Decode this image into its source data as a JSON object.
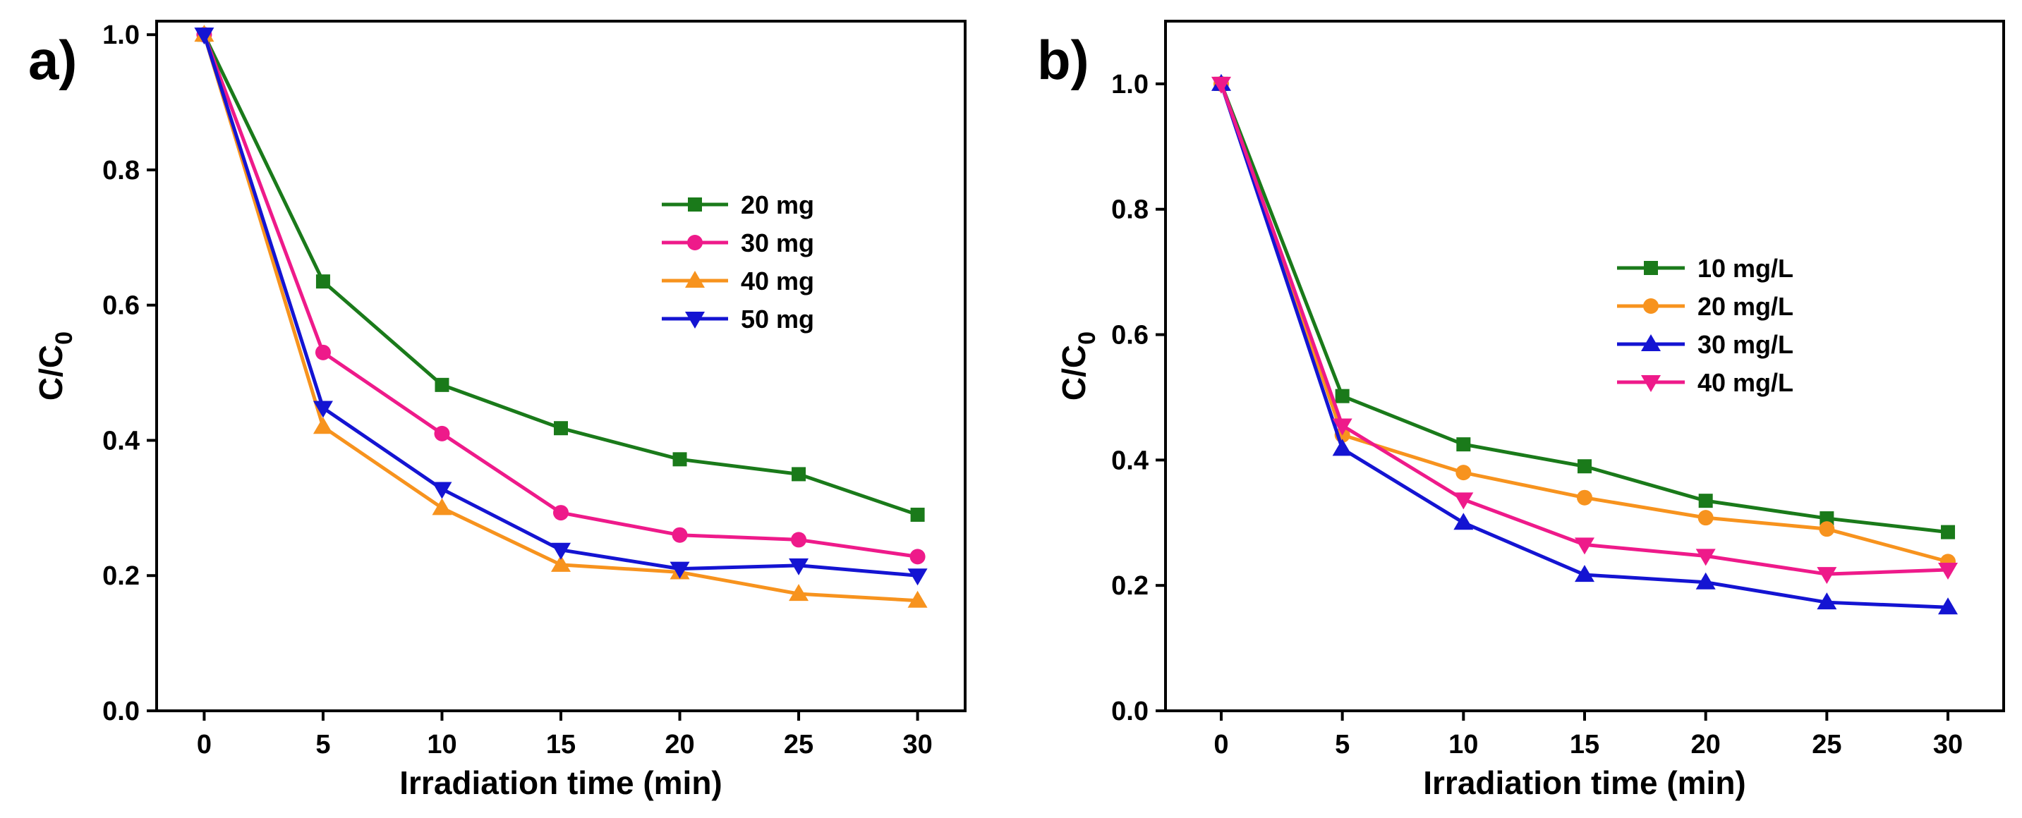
{
  "chart_data": [
    {
      "panel_label": "a)",
      "type": "line",
      "x": [
        0,
        5,
        10,
        15,
        20,
        25,
        30
      ],
      "xlabel": "Irradiation time (min)",
      "ylabel": "C/C",
      "ylabel_subscript": "0",
      "xlim": [
        -2,
        32
      ],
      "ylim": [
        0.0,
        1.02
      ],
      "xticks": [
        0,
        5,
        10,
        15,
        20,
        25,
        30
      ],
      "xtick_labels": [
        "0",
        "5",
        "10",
        "15",
        "20",
        "25",
        "30"
      ],
      "yticks": [
        0.0,
        0.2,
        0.4,
        0.6,
        0.8,
        1.0
      ],
      "ytick_labels": [
        "0.0",
        "0.2",
        "0.4",
        "0.6",
        "0.8",
        "1.0"
      ],
      "legend_position": "upper-right",
      "series": [
        {
          "name": "20 mg",
          "color": "#1a7a1a",
          "marker": "square",
          "values": [
            1.0,
            0.635,
            0.482,
            0.418,
            0.372,
            0.35,
            0.29
          ]
        },
        {
          "name": "30 mg",
          "color": "#ee1a8a",
          "marker": "circle",
          "values": [
            1.0,
            0.53,
            0.41,
            0.293,
            0.26,
            0.253,
            0.228
          ]
        },
        {
          "name": "40 mg",
          "color": "#f7931e",
          "marker": "triangle-up",
          "values": [
            1.0,
            0.42,
            0.3,
            0.216,
            0.205,
            0.173,
            0.163
          ]
        },
        {
          "name": "50 mg",
          "color": "#1414d2",
          "marker": "triangle-down",
          "values": [
            1.0,
            0.448,
            0.328,
            0.238,
            0.21,
            0.215,
            0.2
          ]
        }
      ]
    },
    {
      "panel_label": "b)",
      "type": "line",
      "x": [
        0,
        5,
        10,
        15,
        20,
        25,
        30
      ],
      "xlabel": "Irradiation time (min)",
      "ylabel": "C/C",
      "ylabel_subscript": "0",
      "xlim": [
        -2.3,
        32.3
      ],
      "ylim": [
        0.0,
        1.1
      ],
      "xticks": [
        0,
        5,
        10,
        15,
        20,
        25,
        30
      ],
      "xtick_labels": [
        "0",
        "5",
        "10",
        "15",
        "20",
        "25",
        "30"
      ],
      "yticks": [
        0.0,
        0.2,
        0.4,
        0.6,
        0.8,
        1.0
      ],
      "ytick_labels": [
        "0.0",
        "0.2",
        "0.4",
        "0.6",
        "0.8",
        "1.0"
      ],
      "legend_position": "center-right",
      "series": [
        {
          "name": "10 mg/L",
          "color": "#1a7a1a",
          "marker": "square",
          "values": [
            1.0,
            0.502,
            0.425,
            0.39,
            0.335,
            0.307,
            0.285
          ]
        },
        {
          "name": "20 mg/L",
          "color": "#f7931e",
          "marker": "circle",
          "values": [
            1.0,
            0.44,
            0.38,
            0.34,
            0.308,
            0.29,
            0.238
          ]
        },
        {
          "name": "30 mg/L",
          "color": "#1414d2",
          "marker": "triangle-up",
          "values": [
            1.0,
            0.418,
            0.3,
            0.217,
            0.205,
            0.173,
            0.165
          ]
        },
        {
          "name": "40 mg/L",
          "color": "#ee1a8a",
          "marker": "triangle-down",
          "values": [
            1.0,
            0.455,
            0.337,
            0.265,
            0.247,
            0.218,
            0.225
          ]
        }
      ]
    }
  ]
}
